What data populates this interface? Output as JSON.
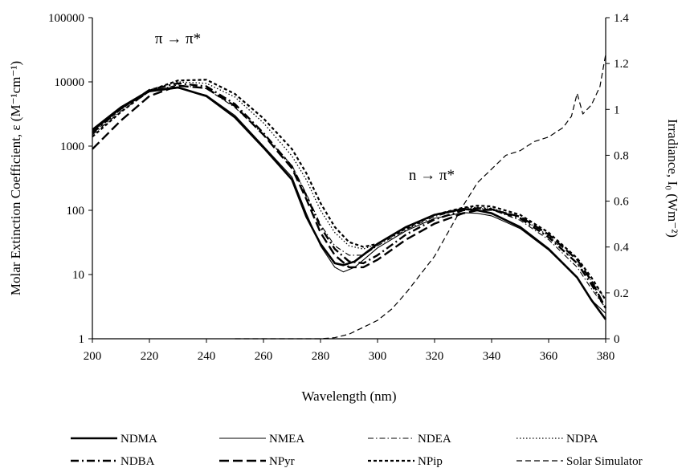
{
  "chart_data": {
    "type": "line",
    "title": "",
    "xlabel": "Wavelength (nm)",
    "ylabel_left": "Molar Extinction Coefficient, ε (M⁻¹cm⁻¹)",
    "ylabel_right": "Irradiance, I₀ (Wm⁻²)",
    "xlim": [
      200,
      380
    ],
    "ylim_left": [
      1,
      100000
    ],
    "ylim_right": [
      0,
      1.4
    ],
    "y_left_scale": "log",
    "grid": false,
    "legend_placement": "bottom",
    "x_ticks": [
      "200",
      "220",
      "240",
      "260",
      "280",
      "300",
      "320",
      "340",
      "360",
      "380"
    ],
    "y_left_ticks": [
      "1",
      "10",
      "100",
      "1000",
      "10000",
      "100000"
    ],
    "y_right_ticks": [
      "0",
      "0.2",
      "0.4",
      "0.6",
      "0.8",
      "1",
      "1.2",
      "1.4"
    ],
    "annotations": [
      {
        "text": "π → π*",
        "x": 230,
        "y": 40000,
        "axis": "left"
      },
      {
        "text": "n → π*",
        "x": 319,
        "y": 300,
        "axis": "left"
      }
    ],
    "series": [
      {
        "name": "NDMA",
        "axis": "left",
        "style": "solid-thick",
        "x": [
          200,
          210,
          220,
          230,
          240,
          250,
          260,
          270,
          275,
          280,
          285,
          288,
          292,
          300,
          310,
          320,
          330,
          335,
          340,
          350,
          360,
          370,
          375,
          380
        ],
        "y": [
          1800,
          4000,
          7300,
          8200,
          6000,
          2800,
          950,
          300,
          80,
          30,
          15,
          14,
          16,
          30,
          55,
          85,
          105,
          100,
          90,
          55,
          25,
          9,
          4,
          2
        ]
      },
      {
        "name": "NMEA",
        "axis": "left",
        "style": "solid-thin",
        "x": [
          200,
          210,
          220,
          230,
          240,
          250,
          260,
          270,
          275,
          280,
          285,
          288,
          292,
          300,
          310,
          320,
          330,
          335,
          340,
          350,
          360,
          370,
          375,
          380
        ],
        "y": [
          1700,
          3800,
          7000,
          8000,
          6200,
          3000,
          1000,
          330,
          90,
          28,
          13,
          11,
          13,
          26,
          48,
          75,
          92,
          90,
          82,
          52,
          24,
          9,
          4,
          2.5
        ]
      },
      {
        "name": "NDEA",
        "axis": "left",
        "style": "dash-dot",
        "x": [
          200,
          210,
          220,
          230,
          240,
          250,
          260,
          270,
          275,
          280,
          285,
          290,
          295,
          300,
          310,
          320,
          330,
          335,
          340,
          350,
          360,
          370,
          375,
          380
        ],
        "y": [
          1500,
          3500,
          7000,
          9000,
          7800,
          4000,
          1500,
          500,
          180,
          60,
          28,
          20,
          20,
          28,
          50,
          80,
          105,
          108,
          102,
          70,
          35,
          13,
          6,
          3
        ]
      },
      {
        "name": "NDPA",
        "axis": "left",
        "style": "dotted",
        "x": [
          200,
          210,
          220,
          230,
          240,
          250,
          260,
          270,
          275,
          280,
          285,
          290,
          295,
          300,
          310,
          320,
          330,
          335,
          340,
          350,
          360,
          370,
          375,
          380
        ],
        "y": [
          1600,
          3700,
          7500,
          10000,
          9500,
          5800,
          2300,
          700,
          300,
          100,
          45,
          28,
          25,
          30,
          55,
          85,
          108,
          112,
          108,
          78,
          40,
          15,
          8,
          4
        ]
      },
      {
        "name": "NDBA",
        "axis": "left",
        "style": "long-dash-dot",
        "x": [
          200,
          210,
          220,
          230,
          240,
          250,
          260,
          270,
          275,
          280,
          285,
          290,
          295,
          300,
          310,
          320,
          330,
          335,
          340,
          350,
          360,
          370,
          375,
          380
        ],
        "y": [
          1600,
          3800,
          7500,
          9500,
          8500,
          4500,
          1600,
          480,
          170,
          55,
          25,
          16,
          15,
          20,
          42,
          72,
          100,
          108,
          104,
          75,
          38,
          15,
          7,
          3
        ]
      },
      {
        "name": "NPyr",
        "axis": "left",
        "style": "long-dash",
        "x": [
          200,
          210,
          220,
          230,
          240,
          250,
          260,
          270,
          275,
          280,
          285,
          290,
          295,
          300,
          310,
          320,
          330,
          335,
          340,
          350,
          360,
          370,
          375,
          380
        ],
        "y": [
          900,
          2500,
          6000,
          8700,
          8000,
          4200,
          1500,
          450,
          150,
          45,
          20,
          13,
          13,
          17,
          35,
          62,
          90,
          100,
          102,
          80,
          42,
          17,
          8,
          3
        ]
      },
      {
        "name": "NPip",
        "axis": "left",
        "style": "short-dash",
        "x": [
          200,
          210,
          220,
          230,
          240,
          250,
          260,
          270,
          275,
          280,
          285,
          290,
          295,
          300,
          310,
          320,
          330,
          335,
          340,
          350,
          360,
          370,
          375,
          380
        ],
        "y": [
          1400,
          3400,
          7300,
          10500,
          10800,
          6500,
          2700,
          900,
          380,
          130,
          55,
          32,
          27,
          30,
          52,
          85,
          110,
          118,
          115,
          85,
          45,
          18,
          9,
          4
        ]
      },
      {
        "name": "Solar Simulator",
        "axis": "right",
        "style": "medium-dash",
        "x": [
          250,
          270,
          280,
          285,
          290,
          295,
          300,
          305,
          310,
          315,
          320,
          325,
          330,
          335,
          340,
          345,
          350,
          355,
          360,
          365,
          368,
          370,
          372,
          375,
          378,
          380
        ],
        "y": [
          0,
          0,
          0,
          0.005,
          0.02,
          0.05,
          0.08,
          0.13,
          0.2,
          0.28,
          0.36,
          0.47,
          0.58,
          0.68,
          0.74,
          0.8,
          0.82,
          0.86,
          0.88,
          0.92,
          0.97,
          1.07,
          0.98,
          1.02,
          1.1,
          1.24
        ]
      }
    ]
  }
}
